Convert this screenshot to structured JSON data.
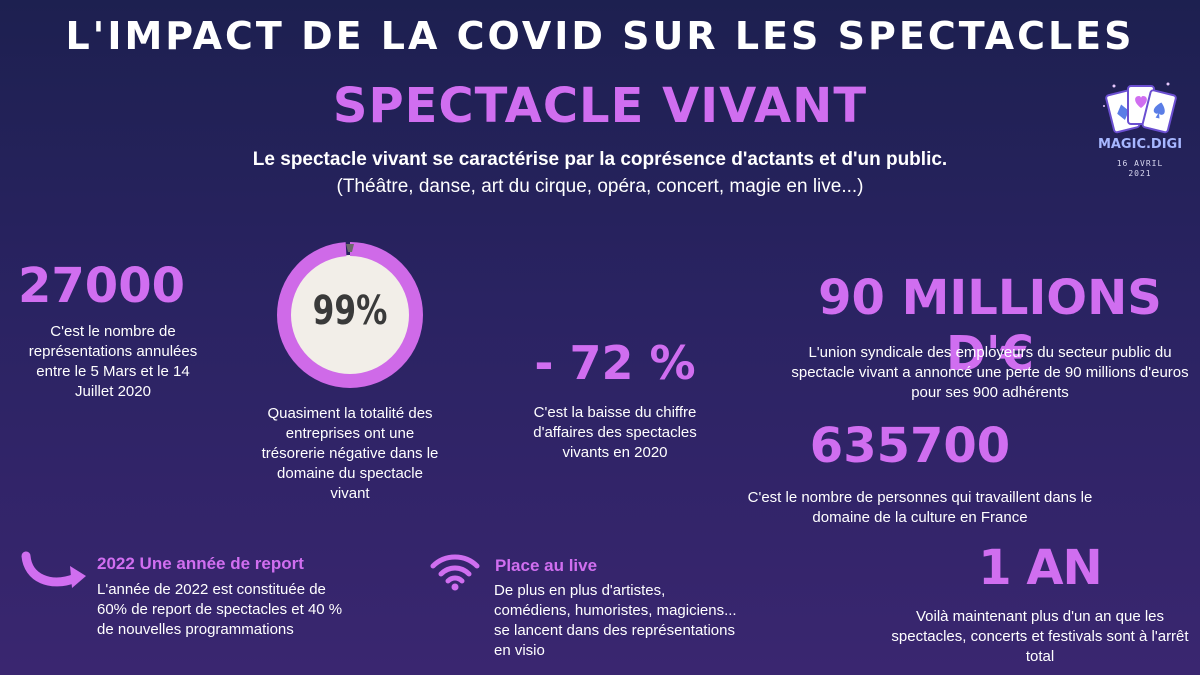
{
  "header": {
    "title": "L'IMPACT DE LA COVID SUR LES SPECTACLES",
    "section_title": "SPECTACLE VIVANT",
    "intro_line1": "Le spectacle vivant se caractérise par la coprésence d'actants et d'un public.",
    "intro_line2": "(Théâtre, danse, art du cirque, opéra, concert, magie en live...)"
  },
  "logo": {
    "name": "MAGIC.DIGI",
    "date_line1": "16 AVRIL",
    "date_line2": "2021",
    "icon": "playing-cards-icon"
  },
  "stats": {
    "representations": {
      "value": "27000",
      "description": "C'est le nombre de représentations annulées entre le 5 Mars et le 14 Juillet 2020"
    },
    "tresorerie": {
      "value": "99%",
      "percent": 99,
      "description": "Quasiment la totalité des entreprises ont une trésorerie négative dans le domaine du spectacle vivant"
    },
    "chiffre_affaires": {
      "value": "- 72 %",
      "description": "C'est la baisse du chiffre d'affaires des spectacles vivants en 2020"
    },
    "perte": {
      "value": "90 MILLIONS D'€",
      "description": "L'union syndicale des employeurs du secteur public du spectacle vivant a annoncé une perte de 90 millions d'euros pour ses 900 adhérents"
    },
    "travailleurs": {
      "value": "635700",
      "description": "C'est le nombre de personnes qui travaillent dans le domaine de la culture en France"
    },
    "duree": {
      "value": "1 AN",
      "description": "Voilà maintenant plus d'un an que les spectacles, concerts et festivals sont à l'arrêt total"
    }
  },
  "report": {
    "title": "2022 Une année de report",
    "description": "L'année de 2022 est constituée de 60% de report de spectacles et 40 % de nouvelles programmations",
    "icon": "curved-arrow-icon"
  },
  "live": {
    "title": "Place au live",
    "description": "De plus en plus d'artistes, comédiens, humoristes, magiciens... se lancent dans des représentations en visio",
    "icon": "wifi-icon"
  },
  "colors": {
    "accent": "#d06ef0",
    "background_top": "#1d2050",
    "background_bottom": "#3a2670"
  }
}
